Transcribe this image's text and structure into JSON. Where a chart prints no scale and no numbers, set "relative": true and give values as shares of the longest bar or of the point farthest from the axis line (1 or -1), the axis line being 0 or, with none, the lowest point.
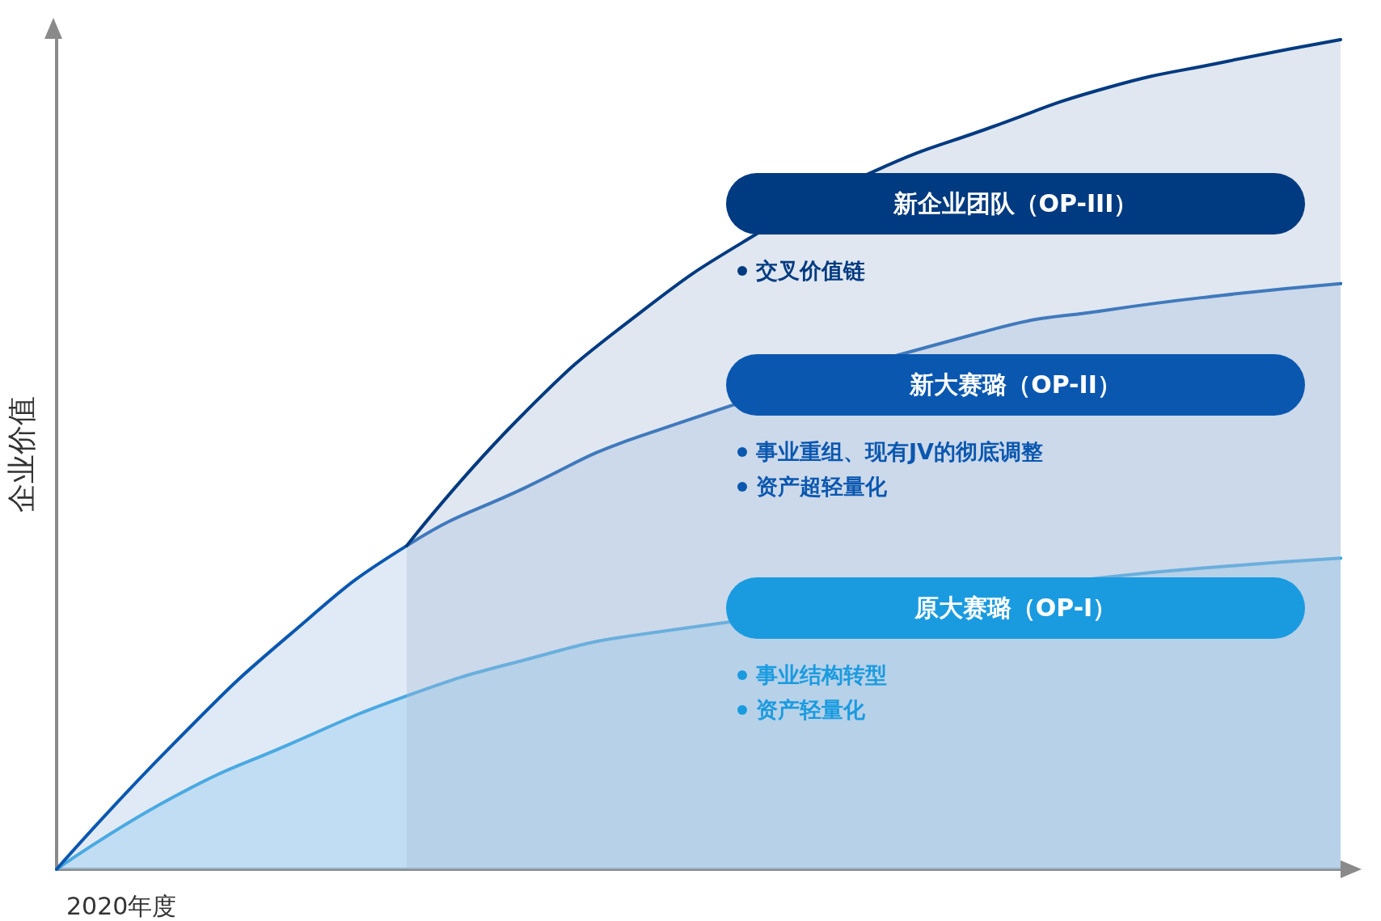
{
  "chart_data": {
    "type": "area",
    "relative": true,
    "ylabel": "企业价值",
    "xlabel": "2020年度",
    "categories": [
      null,
      null,
      null,
      null,
      null,
      null,
      null,
      null,
      null,
      null,
      null,
      null
    ],
    "series": [
      {
        "name": "原大赛璐（OP-I）",
        "color": "#1a9be0",
        "values": [
          0,
          0.087,
          0.151,
          0.209,
          0.252,
          0.283,
          null,
          null,
          null,
          0.352,
          0.365,
          0.375
        ]
      },
      {
        "name": "新大赛璐（OP-II）",
        "color": "#0a57b0",
        "values": [
          0,
          0.151,
          0.283,
          0.39,
          0.459,
          0.522,
          null,
          null,
          0.65,
          0.674,
          0.692,
          0.706
        ]
      },
      {
        "name": "新企业团队（OP-III）",
        "color": "#003a80",
        "values": [
          null,
          null,
          null,
          0.39,
          0.549,
          0.671,
          0.766,
          0.841,
          0.894,
          0.942,
          0.973,
          1
        ]
      }
    ],
    "annotations": [
      "事业结构转型",
      "资产轻量化",
      "事业重组、现有JV的彻底调整",
      "资产超轻量化",
      "交叉价值链"
    ],
    "legend": false,
    "grid": false,
    "marker": "none",
    "line_style": "solid"
  }
}
